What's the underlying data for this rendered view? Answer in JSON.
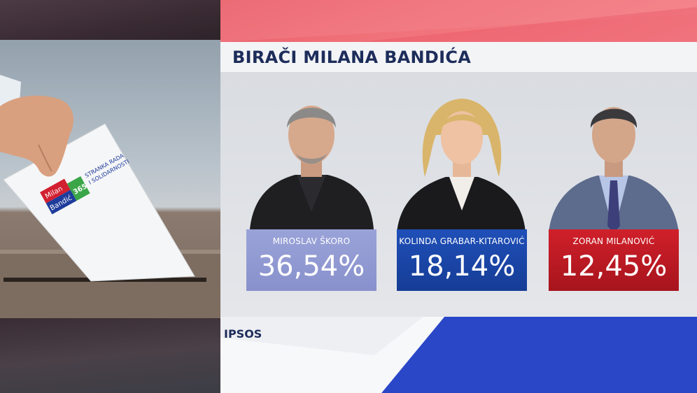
{
  "title": "BIRAČI MILANA BANDIĆA",
  "source": "IPSOS",
  "ballot": {
    "logo_line1": "Milan",
    "logo_line2": "Bandić",
    "logo_number": "365",
    "party_line1": "STRANKA RADA",
    "party_line2": "I SOLIDARNOSTI"
  },
  "candidates": [
    {
      "name": "MIROSLAV ŠKORO",
      "percent": "36,54%",
      "color": "#8b93cf"
    },
    {
      "name": "KOLINDA GRABAR-KITAROVIĆ",
      "percent": "18,14%",
      "color": "#1c47aa"
    },
    {
      "name": "ZORAN MILANOVIĆ",
      "percent": "12,45%",
      "color": "#c41b25"
    }
  ],
  "colors": {
    "title_text": "#1d2d5a",
    "top_band": "#ef6b75",
    "bottom_band_blue": "#2a47c8"
  }
}
